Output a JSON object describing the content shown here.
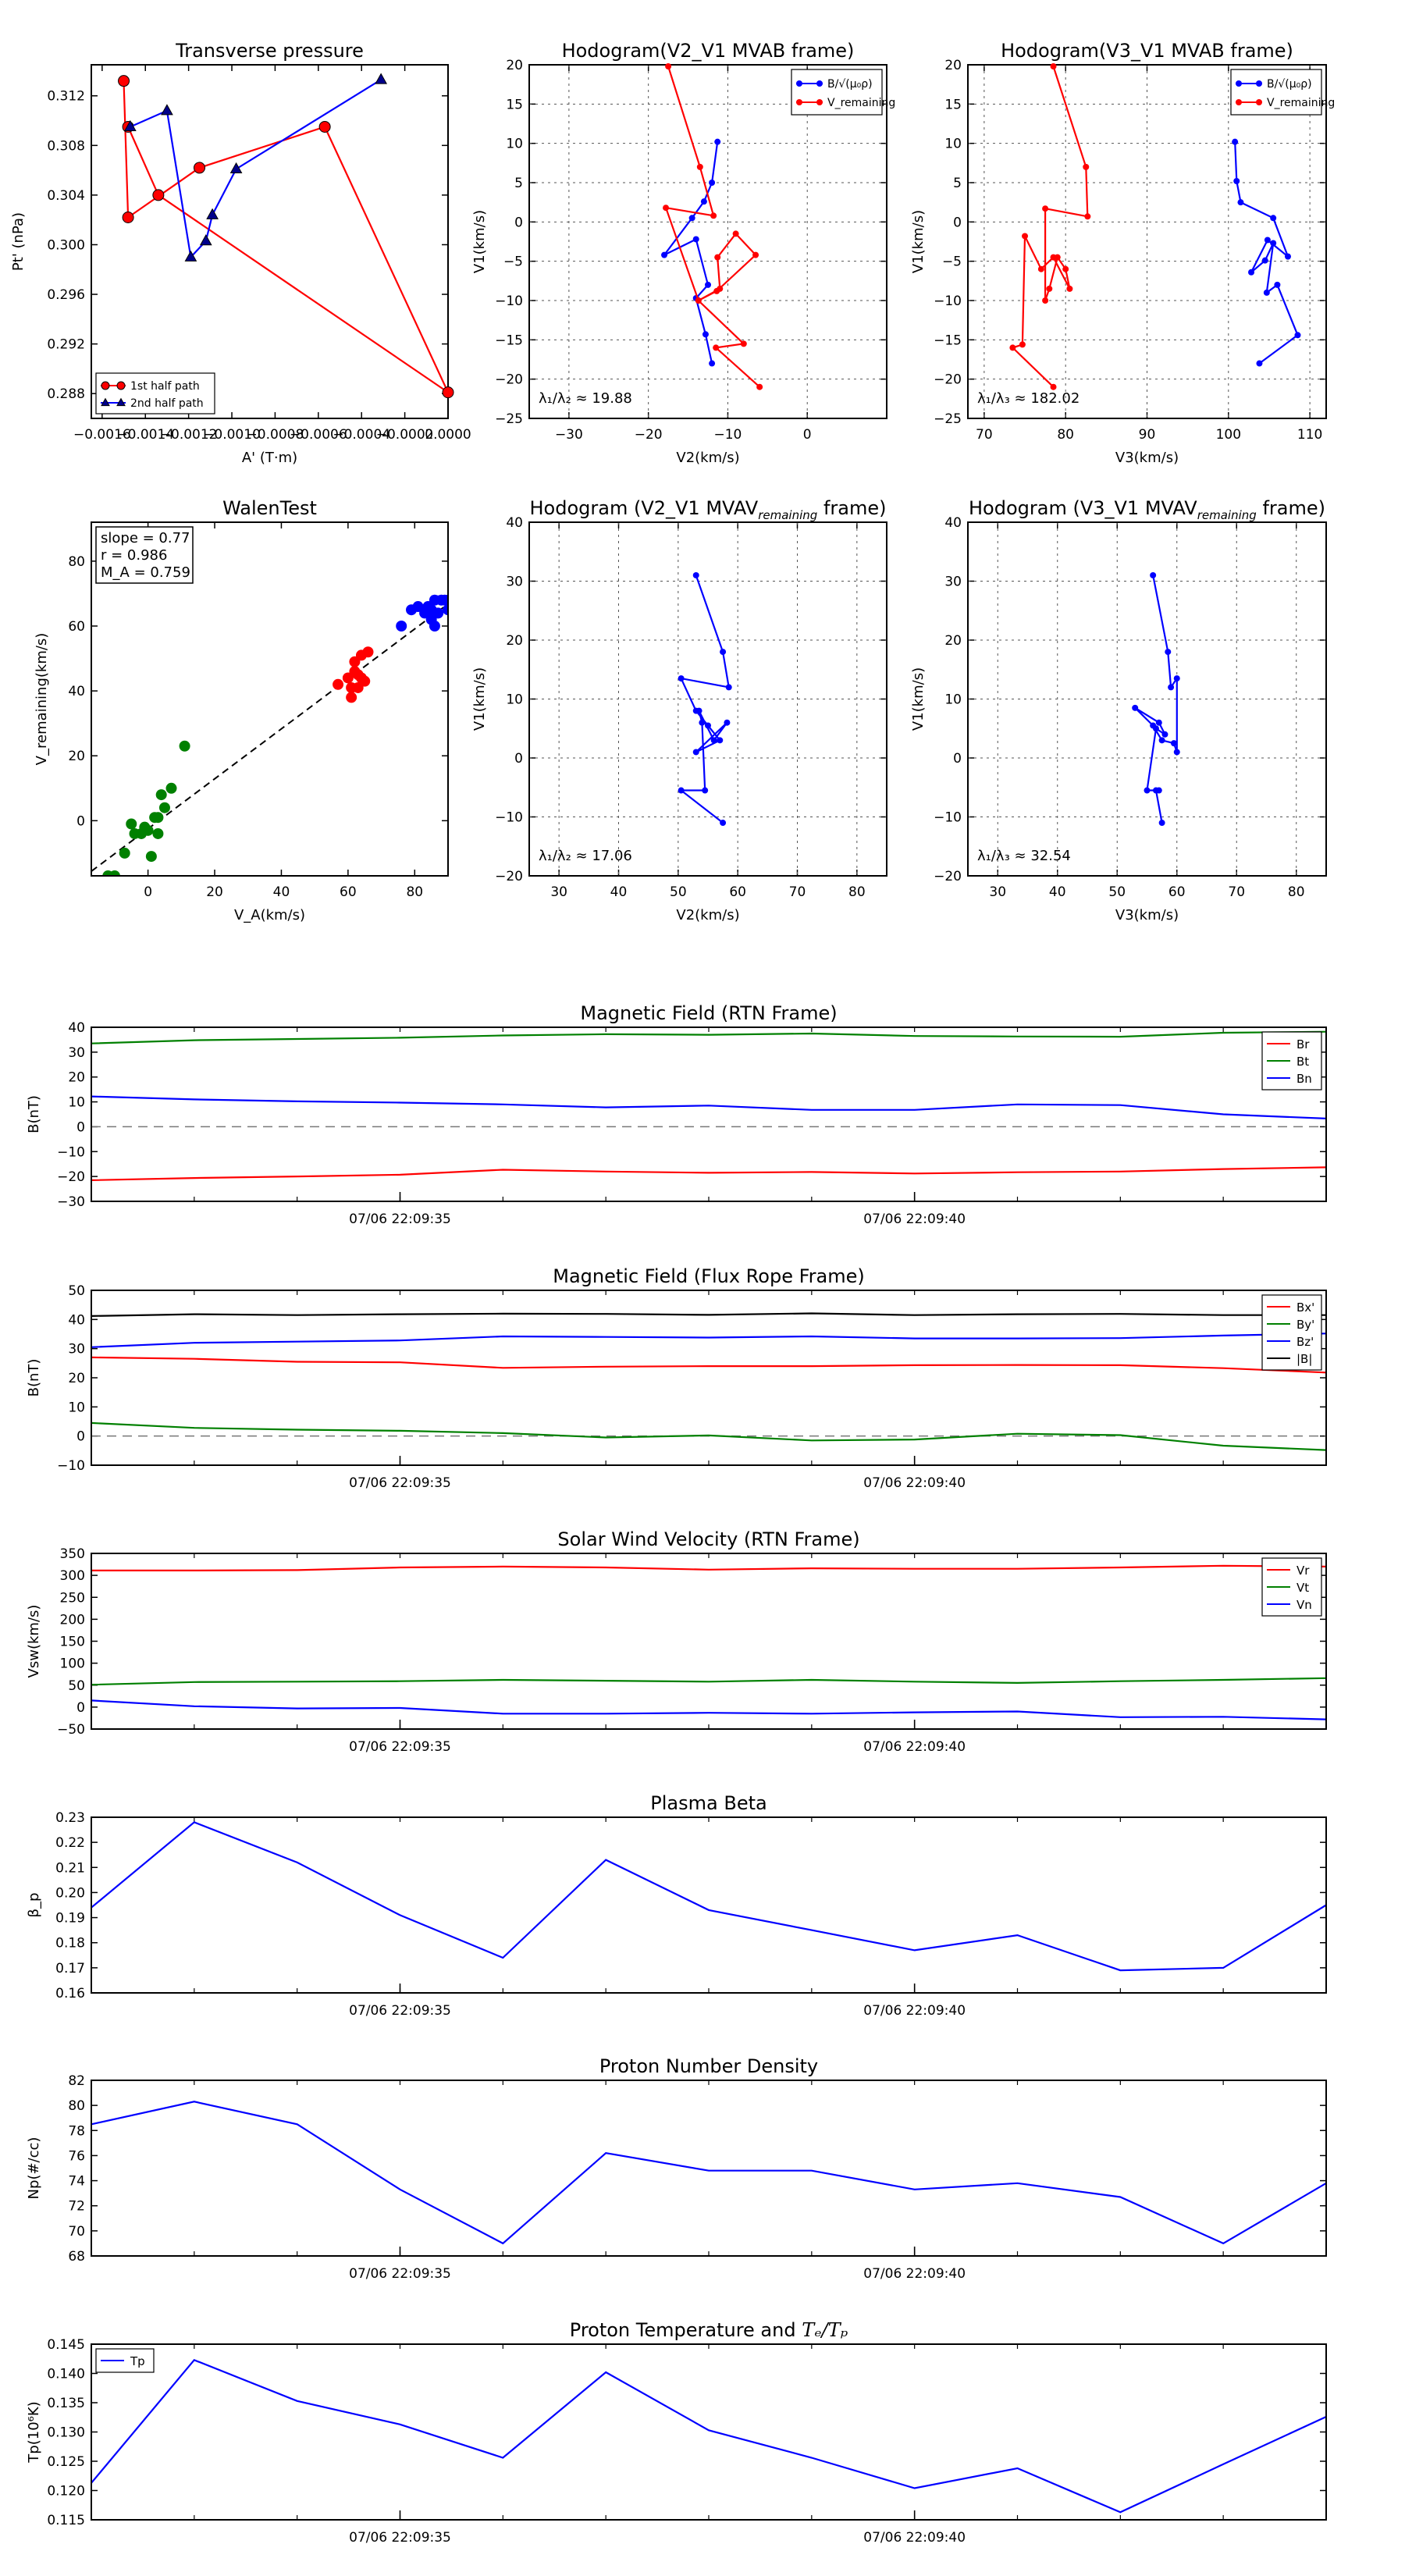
{
  "chart_data": [
    {
      "id": "pt",
      "type": "scatter",
      "title": "Transverse pressure",
      "xlabel": "A' (T·m)",
      "ylabel": "Pt' (nPa)",
      "xlim": [
        -0.00165,
        0
      ],
      "ylim": [
        0.286,
        0.3145
      ],
      "xticks": [
        -0.0016,
        -0.0014,
        -0.0012,
        -0.001,
        -0.0008,
        -0.0006,
        -0.0004,
        -0.0002,
        0
      ],
      "xticklabels": [
        "−0.0016",
        "−0.0014",
        "−0.0012",
        "−0.0010",
        "−0.0008",
        "−0.0006",
        "−0.0004",
        "−0.0002",
        "0.0000"
      ],
      "yticks": [
        0.288,
        0.292,
        0.296,
        0.3,
        0.304,
        0.308,
        0.312
      ],
      "yticklabels": [
        "0.288",
        "0.292",
        "0.296",
        "0.300",
        "0.304",
        "0.308",
        "0.312"
      ],
      "legend_position": "lower-left",
      "series": [
        {
          "name": "1st half path",
          "color": "#ff0000",
          "marker": "circle",
          "x": [
            -0.0015,
            -0.00148,
            -0.00115,
            -0.00057,
            0,
            -0.00134,
            -0.00148
          ],
          "y": [
            0.3132,
            0.3022,
            0.3062,
            0.3095,
            0.2881,
            0.304,
            0.3095
          ]
        },
        {
          "name": "2nd half path",
          "color": "#00008b",
          "marker": "triangle",
          "x": [
            -0.00147,
            -0.0013,
            -0.00119,
            -0.00112,
            -0.00109,
            -0.00098,
            -0.00031
          ],
          "y": [
            0.3095,
            0.3108,
            0.299,
            0.3003,
            0.3024,
            0.3061,
            0.3133
          ]
        }
      ]
    },
    {
      "id": "hodo_v2_mvab",
      "type": "line",
      "title": "Hodogram(V2_V1 MVAB frame)",
      "xlabel": "V2(km/s)",
      "ylabel": "V1(km/s)",
      "xlim": [
        -35,
        10
      ],
      "ylim": [
        -25,
        20
      ],
      "xticks": [
        -30,
        -20,
        -10,
        0
      ],
      "yticks": [
        -25,
        -20,
        -15,
        -10,
        -5,
        0,
        5,
        10,
        15,
        20
      ],
      "annotation": "λ₁/λ₂ ≈ 19.88",
      "legend_position": "top-right",
      "series": [
        {
          "name": "B/√(μ₀ρ)",
          "color": "#0000ff",
          "x": [
            -11.3,
            -12.0,
            -13.0,
            -14.5,
            -18.0,
            -14.0,
            -12.5,
            -14.0,
            -12.8,
            -12.0
          ],
          "y": [
            10.2,
            5.0,
            2.6,
            0.5,
            -4.2,
            -2.2,
            -8.0,
            -9.7,
            -14.3,
            -18.0
          ]
        },
        {
          "name": "V_remaining",
          "color": "#ff0000",
          "x": [
            -17.5,
            -13.5,
            -11.8,
            -17.8,
            -13.7,
            -11.0,
            -11.3,
            -9.0,
            -6.5,
            -11.4,
            -13.7,
            -8.0,
            -11.5,
            -6.0
          ],
          "y": [
            19.8,
            7.0,
            0.8,
            1.8,
            -10.0,
            -8.5,
            -4.5,
            -1.5,
            -4.2,
            -8.8,
            -10.0,
            -15.5,
            -16.0,
            -21.0
          ]
        }
      ]
    },
    {
      "id": "hodo_v3_mvab",
      "type": "line",
      "title": "Hodogram(V3_V1 MVAB frame)",
      "xlabel": "V3(km/s)",
      "ylabel": "V1(km/s)",
      "xlim": [
        68,
        112
      ],
      "ylim": [
        -25,
        20
      ],
      "xticks": [
        70,
        80,
        90,
        100,
        110
      ],
      "yticks": [
        -25,
        -20,
        -15,
        -10,
        -5,
        0,
        5,
        10,
        15,
        20
      ],
      "annotation": "λ₁/λ₃ ≈ 182.02",
      "legend_position": "top-right",
      "series": [
        {
          "name": "B/√(μ₀ρ)",
          "color": "#0000ff",
          "x": [
            100.8,
            101.0,
            101.5,
            105.5,
            107.3,
            104.8,
            102.8,
            104.5,
            105.5,
            104.7,
            106.0,
            108.5,
            103.8
          ],
          "y": [
            10.2,
            5.2,
            2.5,
            0.5,
            -4.4,
            -2.3,
            -6.4,
            -4.9,
            -2.7,
            -9.0,
            -8.0,
            -14.4,
            -18.0
          ]
        },
        {
          "name": "V_remaining",
          "color": "#ff0000",
          "x": [
            78.5,
            82.5,
            82.7,
            77.5,
            77.5,
            78.0,
            79.0,
            80.0,
            80.5,
            78.5,
            77.0,
            75.0,
            74.7,
            73.5,
            78.5
          ],
          "y": [
            19.8,
            7.0,
            0.7,
            1.7,
            -10.0,
            -8.5,
            -4.5,
            -6.0,
            -8.5,
            -4.5,
            -6.0,
            -1.8,
            -15.6,
            -16.0,
            -21.0
          ]
        }
      ]
    },
    {
      "id": "walen",
      "type": "scatter",
      "title": "WalenTest",
      "xlabel": "V_A(km/s)",
      "ylabel": "V_remaining(km/s)",
      "xlim": [
        -17,
        90
      ],
      "ylim": [
        -17,
        92
      ],
      "xticks": [
        0,
        20,
        40,
        60,
        80
      ],
      "yticks": [
        0,
        20,
        40,
        60,
        80
      ],
      "info_lines": [
        "slope = 0.77",
        "r = 0.986",
        "M_A = 0.759"
      ],
      "fit": {
        "slope": 0.77,
        "intercept": -2.5
      },
      "series": [
        {
          "name": "green",
          "color": "#008000",
          "x": [
            -12,
            -7,
            -5,
            -4,
            -2,
            -1,
            0,
            1,
            2,
            3,
            4,
            5,
            7,
            11,
            3,
            -10
          ],
          "y": [
            -17,
            -10,
            -1,
            -4,
            -4,
            -2,
            -3,
            -11,
            1,
            -4,
            8,
            4,
            10,
            23,
            1,
            -17
          ]
        },
        {
          "name": "red",
          "color": "#ff0000",
          "x": [
            57,
            60,
            61,
            61,
            62,
            63,
            63,
            64,
            64,
            65,
            66,
            62
          ],
          "y": [
            42,
            44,
            38,
            41,
            49,
            41,
            45,
            44,
            51,
            43,
            52,
            46
          ]
        },
        {
          "name": "blue",
          "color": "#0000ff",
          "x": [
            76,
            79,
            81,
            83,
            84,
            85,
            85,
            86,
            86,
            87,
            88,
            89,
            90,
            90
          ],
          "y": [
            60,
            65,
            66,
            64,
            66,
            62,
            65,
            60,
            68,
            64,
            68,
            68,
            65,
            68
          ]
        }
      ]
    },
    {
      "id": "hodo_v2_mvav",
      "type": "line",
      "title": "Hodogram (V2_V1 MVAV",
      "title_sub": "remaining",
      "title_tail": " frame)",
      "xlabel": "V2(km/s)",
      "ylabel": "V1(km/s)",
      "xlim": [
        25,
        85
      ],
      "ylim": [
        -20,
        40
      ],
      "xticks": [
        30,
        40,
        50,
        60,
        70,
        80
      ],
      "yticks": [
        -20,
        -10,
        0,
        10,
        20,
        30,
        40
      ],
      "annotation": "λ₁/λ₂ ≈ 17.06",
      "series": [
        {
          "name": "V",
          "color": "#0000ff",
          "x": [
            53.0,
            57.5,
            58.5,
            50.5,
            53.0,
            55.0,
            57.0,
            53.0,
            58.2,
            56.0,
            53.5,
            54.0,
            54.5,
            50.5,
            57.5
          ],
          "y": [
            31.0,
            18.0,
            12.0,
            13.5,
            8.0,
            5.5,
            3.0,
            1.0,
            6.0,
            3.0,
            8.0,
            6.0,
            -5.5,
            -5.5,
            -11.0
          ]
        }
      ]
    },
    {
      "id": "hodo_v3_mvav",
      "type": "line",
      "title": "Hodogram (V3_V1 MVAV",
      "title_sub": "remaining",
      "title_tail": " frame)",
      "xlabel": "V3(km/s)",
      "ylabel": "V1(km/s)",
      "xlim": [
        25,
        85
      ],
      "ylim": [
        -20,
        40
      ],
      "xticks": [
        30,
        40,
        50,
        60,
        70,
        80
      ],
      "yticks": [
        -20,
        -10,
        0,
        10,
        20,
        30,
        40
      ],
      "annotation": "λ₁/λ₃ ≈ 32.54",
      "series": [
        {
          "name": "V",
          "color": "#0000ff",
          "x": [
            56.0,
            58.5,
            59.0,
            60.0,
            60.0,
            59.5,
            57.5,
            56.0,
            53.0,
            57.0,
            58.0,
            56.5,
            55.0,
            57.0,
            56.5,
            57.5
          ],
          "y": [
            31.0,
            18.0,
            12.0,
            13.5,
            1.0,
            2.5,
            3.0,
            5.5,
            8.5,
            6.0,
            4.0,
            5.0,
            -5.5,
            -5.5,
            -5.5,
            -11.0
          ]
        }
      ]
    },
    {
      "id": "b_rtn",
      "type": "line",
      "title": "Magnetic Field (RTN Frame)",
      "ylabel": "B(nT)",
      "xlim": [
        0,
        12
      ],
      "ylim": [
        -30,
        40
      ],
      "yticks": [
        -30,
        -20,
        -10,
        0,
        10,
        20,
        30,
        40
      ],
      "xticks": [
        3,
        8
      ],
      "xticklabels": [
        "07/06 22:09:35",
        "07/06 22:09:40"
      ],
      "zero_line": true,
      "series": [
        {
          "name": "Br",
          "color": "#ff0000",
          "values": [
            -21.5,
            -20.6,
            -20.0,
            -19.3,
            -17.3,
            -18.0,
            -18.5,
            -18.2,
            -18.8,
            -18.3,
            -18.0,
            -17.0,
            -16.3
          ]
        },
        {
          "name": "Bt",
          "color": "#008000",
          "values": [
            33.5,
            34.8,
            35.3,
            35.8,
            36.7,
            37.2,
            37.0,
            37.5,
            36.5,
            36.3,
            36.2,
            37.8,
            38.2
          ]
        },
        {
          "name": "Bn",
          "color": "#0000ff",
          "values": [
            12.2,
            11.0,
            10.2,
            9.7,
            9.0,
            7.8,
            8.5,
            6.8,
            6.8,
            9.0,
            8.7,
            5.0,
            3.3
          ]
        }
      ]
    },
    {
      "id": "b_flux",
      "type": "line",
      "title": "Magnetic Field (Flux Rope Frame)",
      "ylabel": "B(nT)",
      "xlim": [
        0,
        12
      ],
      "ylim": [
        -10,
        50
      ],
      "yticks": [
        -10,
        0,
        10,
        20,
        30,
        40,
        50
      ],
      "xticks": [
        3,
        8
      ],
      "xticklabels": [
        "07/06 22:09:35",
        "07/06 22:09:40"
      ],
      "zero_line": true,
      "series": [
        {
          "name": "Bx'",
          "color": "#ff0000",
          "values": [
            27.0,
            26.5,
            25.5,
            25.3,
            23.4,
            23.8,
            24.0,
            24.0,
            24.3,
            24.4,
            24.3,
            23.3,
            21.8
          ]
        },
        {
          "name": "By'",
          "color": "#008000",
          "values": [
            4.5,
            2.8,
            2.2,
            1.8,
            1.0,
            -0.5,
            0.2,
            -1.5,
            -1.2,
            0.8,
            0.3,
            -3.3,
            -4.8
          ]
        },
        {
          "name": "Bz'",
          "color": "#0000ff",
          "values": [
            30.5,
            32.0,
            32.4,
            32.8,
            34.2,
            34.0,
            33.8,
            34.2,
            33.5,
            33.5,
            33.6,
            34.5,
            35.2
          ]
        },
        {
          "name": "|B|",
          "color": "#000000",
          "values": [
            41.2,
            41.8,
            41.5,
            41.8,
            42.0,
            41.9,
            41.6,
            42.1,
            41.5,
            41.8,
            41.9,
            41.5,
            41.5
          ]
        }
      ]
    },
    {
      "id": "vsw",
      "type": "line",
      "title": "Solar Wind Velocity (RTN Frame)",
      "ylabel": "Vsw(km/s)",
      "xlim": [
        0,
        12
      ],
      "ylim": [
        -50,
        350
      ],
      "yticks": [
        -50,
        0,
        50,
        100,
        150,
        200,
        250,
        300,
        350
      ],
      "xticks": [
        3,
        8
      ],
      "xticklabels": [
        "07/06 22:09:35",
        "07/06 22:09:40"
      ],
      "series": [
        {
          "name": "Vr",
          "color": "#ff0000",
          "values": [
            311,
            311,
            312,
            318,
            320,
            318,
            313,
            316,
            315,
            315,
            318,
            322,
            320
          ]
        },
        {
          "name": "Vt",
          "color": "#008000",
          "values": [
            51,
            57,
            58,
            59,
            62,
            60,
            58,
            62,
            58,
            55,
            59,
            62,
            66
          ]
        },
        {
          "name": "Vn",
          "color": "#0000ff",
          "values": [
            15,
            2,
            -3,
            -2,
            -15,
            -15,
            -13,
            -15,
            -12,
            -10,
            -23,
            -22,
            -28
          ]
        }
      ]
    },
    {
      "id": "beta",
      "type": "line",
      "title": "Plasma Beta",
      "ylabel": "β_p",
      "xlim": [
        0,
        12
      ],
      "ylim": [
        0.16,
        0.23
      ],
      "yticks": [
        0.16,
        0.17,
        0.18,
        0.19,
        0.2,
        0.21,
        0.22,
        0.23
      ],
      "yticklabels": [
        "0.16",
        "0.17",
        "0.18",
        "0.19",
        "0.20",
        "0.21",
        "0.22",
        "0.23"
      ],
      "xticks": [
        3,
        8
      ],
      "xticklabels": [
        "07/06 22:09:35",
        "07/06 22:09:40"
      ],
      "series": [
        {
          "name": "beta",
          "color": "#0000ff",
          "values": [
            0.194,
            0.228,
            0.212,
            0.191,
            0.174,
            0.213,
            0.193,
            0.185,
            0.177,
            0.183,
            0.169,
            0.17,
            0.195
          ]
        }
      ]
    },
    {
      "id": "np",
      "type": "line",
      "title": "Proton Number Density",
      "ylabel": "Np(#/cc)",
      "xlim": [
        0,
        12
      ],
      "ylim": [
        68,
        82
      ],
      "yticks": [
        68,
        70,
        72,
        74,
        76,
        78,
        80,
        82
      ],
      "xticks": [
        3,
        8
      ],
      "xticklabels": [
        "07/06 22:09:35",
        "07/06 22:09:40"
      ],
      "series": [
        {
          "name": "Np",
          "color": "#0000ff",
          "values": [
            78.5,
            80.3,
            78.5,
            73.3,
            69.0,
            76.2,
            74.8,
            74.8,
            73.3,
            73.8,
            72.7,
            69.0,
            73.8
          ]
        }
      ]
    },
    {
      "id": "tp",
      "type": "line",
      "title": "Proton Temperature and ",
      "title_italic": "Tₑ/Tₚ",
      "ylabel": "Tp(10⁶K)",
      "xlim": [
        0,
        12
      ],
      "ylim": [
        0.115,
        0.145
      ],
      "yticks": [
        0.115,
        0.12,
        0.125,
        0.13,
        0.135,
        0.14,
        0.145
      ],
      "yticklabels": [
        "0.115",
        "0.120",
        "0.125",
        "0.130",
        "0.135",
        "0.140",
        "0.145"
      ],
      "xticks": [
        3,
        8
      ],
      "xticklabels": [
        "07/06 22:09:35",
        "07/06 22:09:40"
      ],
      "legend_position": "top-left",
      "series": [
        {
          "name": "Tp",
          "color": "#0000ff",
          "values": [
            0.1213,
            0.1423,
            0.1353,
            0.1313,
            0.1256,
            0.1402,
            0.1303,
            0.1256,
            0.1204,
            0.1238,
            0.1163,
            0.1245,
            0.1326
          ]
        }
      ]
    }
  ]
}
